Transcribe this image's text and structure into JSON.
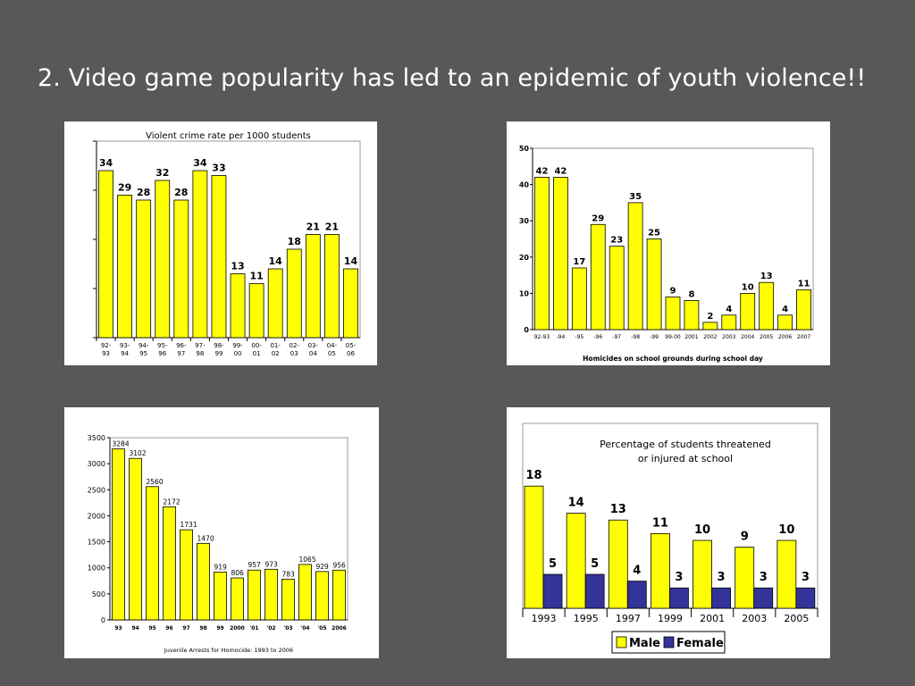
{
  "slide": {
    "title": "2. Video game popularity has led to an epidemic of youth violence!!"
  },
  "chart_data": [
    {
      "type": "bar",
      "title": "Violent crime rate per 1000 students",
      "categories": [
        "92-93",
        "93-94",
        "94-95",
        "95-96",
        "96-97",
        "97-98",
        "98-99",
        "99-00",
        "00-01",
        "01-02",
        "02-03",
        "03-04",
        "04-05",
        "05-06"
      ],
      "values": [
        34,
        29,
        28,
        32,
        28,
        34,
        33,
        13,
        11,
        14,
        18,
        21,
        21,
        14
      ],
      "xlabel": "",
      "ylabel": "",
      "ylim": [
        0,
        40
      ],
      "bar_color": "#ffff00",
      "grid": false
    },
    {
      "type": "bar",
      "title": "Homicides on school grounds during school day",
      "categories": [
        "92-93",
        "-94",
        "-95",
        "-96",
        "-97",
        "-98",
        "-99",
        "99-00",
        "2001",
        "2002",
        "2003",
        "2004",
        "2005",
        "2006",
        "2007"
      ],
      "values": [
        42,
        42,
        17,
        29,
        23,
        35,
        25,
        9,
        8,
        2,
        4,
        10,
        13,
        4,
        11
      ],
      "yticks": [
        0,
        10,
        20,
        30,
        40,
        50
      ],
      "ylim": [
        0,
        50
      ],
      "bar_color": "#ffff00",
      "grid": false
    },
    {
      "type": "bar",
      "title": "Juvenile Arrests for Homocide: 1993 to 2006",
      "categories": [
        "93",
        "94",
        "95",
        "96",
        "97",
        "98",
        "99",
        "2000",
        "'01",
        "'02",
        "'03",
        "'04",
        "'05",
        "2006"
      ],
      "values": [
        3284,
        3102,
        2560,
        2172,
        1731,
        1470,
        919,
        806,
        957,
        973,
        783,
        1065,
        929,
        956
      ],
      "yticks": [
        0,
        500,
        1000,
        1500,
        2000,
        2500,
        3000,
        3500
      ],
      "ylim": [
        0,
        3500
      ],
      "bar_color": "#ffff00",
      "grid": false
    },
    {
      "type": "bar",
      "title": "Percentage of students threatened\nor injured at school",
      "title_lines": [
        "Percentage of students threatened",
        "or injured at school"
      ],
      "categories": [
        "1993",
        "1995",
        "1997",
        "1999",
        "2001",
        "2003",
        "2005"
      ],
      "series": [
        {
          "name": "Male",
          "values": [
            18,
            14,
            13,
            11,
            10,
            9,
            10
          ],
          "color": "#ffff00"
        },
        {
          "name": "Female",
          "values": [
            5,
            5,
            4,
            3,
            3,
            3,
            3
          ],
          "color": "#333399"
        }
      ],
      "ylim": [
        0,
        20
      ],
      "legend": "bottom",
      "grid": false
    }
  ]
}
